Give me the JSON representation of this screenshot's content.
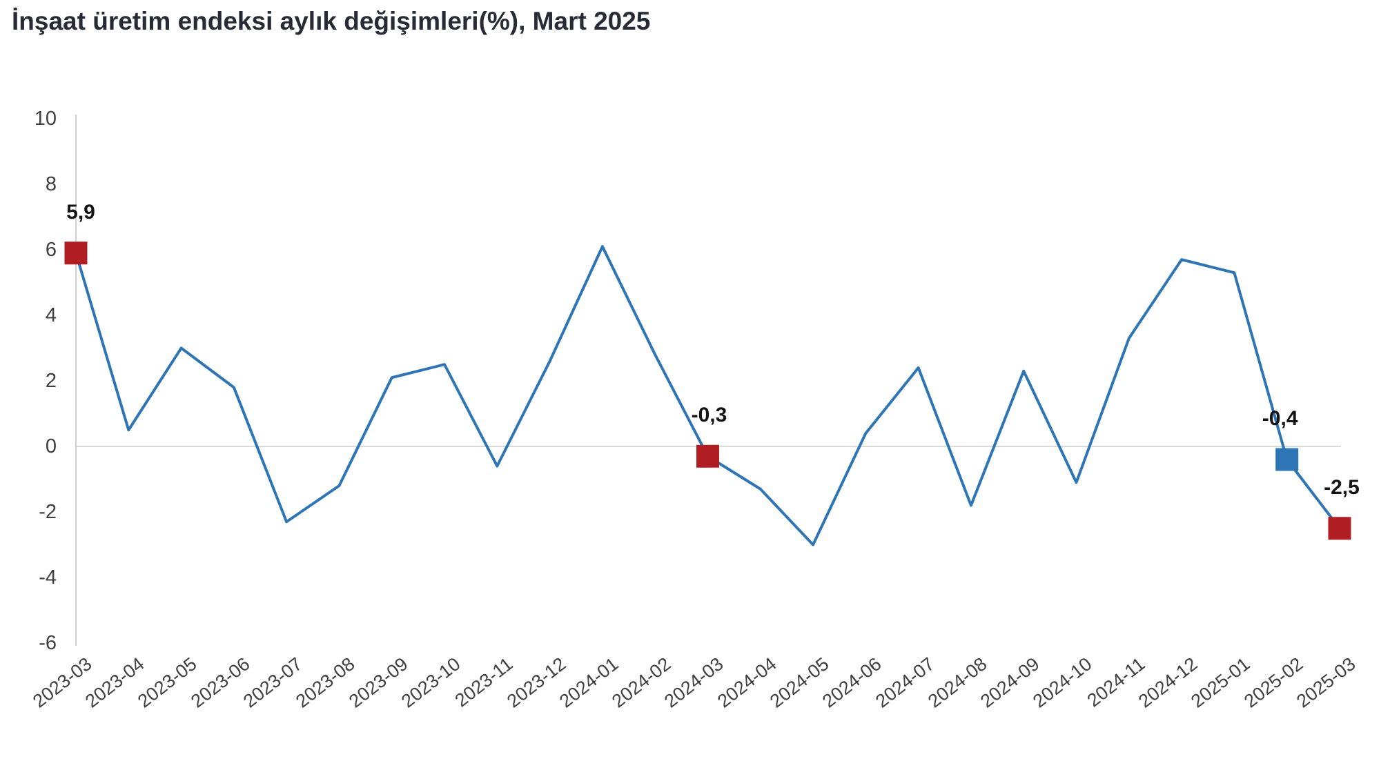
{
  "title": "İnşaat üretim endeksi aylık değişimleri(%), Mart 2025",
  "chart_data": {
    "type": "line",
    "title": "İnşaat üretim endeksi aylık değişimleri(%), Mart 2025",
    "categories": [
      "2023-03",
      "2023-04",
      "2023-05",
      "2023-06",
      "2023-07",
      "2023-08",
      "2023-09",
      "2023-10",
      "2023-11",
      "2023-12",
      "2024-01",
      "2024-02",
      "2024-03",
      "2024-04",
      "2024-05",
      "2024-06",
      "2024-07",
      "2024-08",
      "2024-09",
      "2024-10",
      "2024-11",
      "2024-12",
      "2025-01",
      "2025-02",
      "2025-03"
    ],
    "values": [
      5.9,
      0.5,
      3.0,
      1.8,
      -2.3,
      -1.2,
      2.1,
      2.5,
      -0.6,
      2.6,
      6.1,
      2.8,
      -0.3,
      -1.3,
      -3.0,
      0.4,
      2.4,
      -1.8,
      2.3,
      -1.1,
      3.3,
      5.7,
      5.3,
      -0.4,
      -2.5
    ],
    "ylim": [
      -6,
      10
    ],
    "yticks": [
      10,
      8,
      6,
      4,
      2,
      0,
      -2,
      -4,
      -6
    ],
    "xlabel": "",
    "ylabel": "",
    "grid": "zero-line-only",
    "legend": "none",
    "line_color": "#2E75B6",
    "highlighted_points": [
      {
        "category": "2023-03",
        "index": 0,
        "label": "5,9",
        "marker_color": "#B01E24"
      },
      {
        "category": "2024-03",
        "index": 12,
        "label": "-0,3",
        "marker_color": "#B01E24"
      },
      {
        "category": "2025-02",
        "index": 23,
        "label": "-0,4",
        "marker_color": "#2E75B6"
      },
      {
        "category": "2025-03",
        "index": 24,
        "label": "-2,5",
        "marker_color": "#B01E24"
      }
    ]
  },
  "colors": {
    "background": "#FFFFFF",
    "title_text": "#262B35",
    "axis_text": "#404040",
    "data_label_text": "#141414",
    "zero_line": "#D9D9D9",
    "axis_line": "#D0D0D0"
  }
}
